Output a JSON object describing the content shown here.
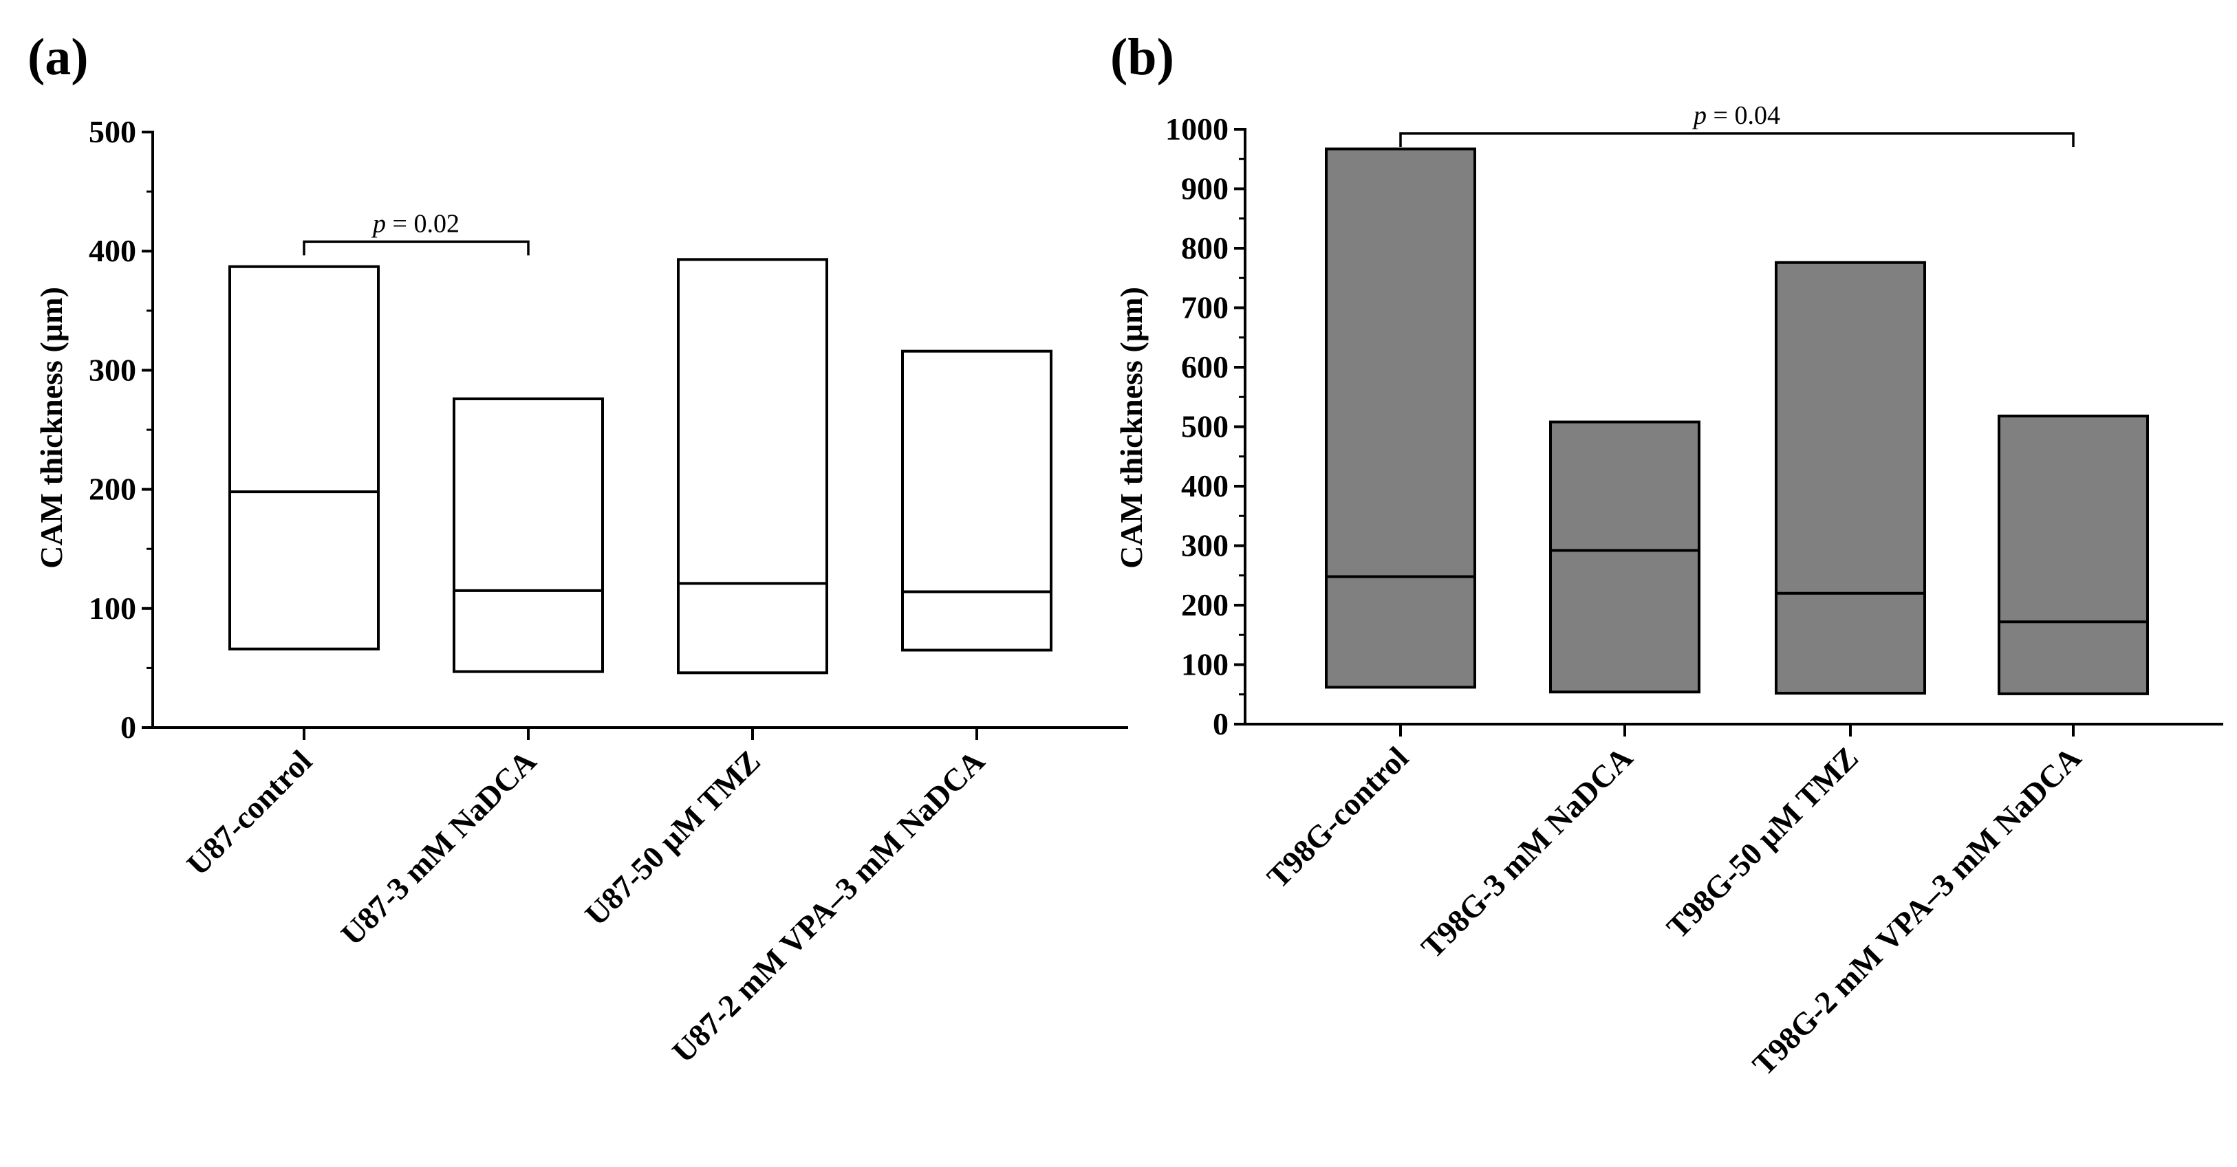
{
  "chart_data": [
    {
      "panel_label": "(a)",
      "type": "box",
      "ylabel": "CAM thickness (µm)",
      "ylim": [
        0,
        500
      ],
      "yticks": [
        0,
        100,
        200,
        300,
        400,
        500
      ],
      "fill_color": "#ffffff",
      "categories": [
        "U87-control",
        "U87-3 mM NaDCA",
        "U87-50 µM TMZ",
        "U87-2 mM VPA–3 mM NaDCA"
      ],
      "boxes": [
        {
          "min": 66,
          "median": 198,
          "max": 387
        },
        {
          "min": 47,
          "median": 115,
          "max": 276
        },
        {
          "min": 46,
          "median": 121,
          "max": 393
        },
        {
          "min": 65,
          "median": 114,
          "max": 316
        }
      ],
      "significance": {
        "from": 0,
        "to": 1,
        "y": 408,
        "p_label": "p",
        "p_value": "= 0.02"
      }
    },
    {
      "panel_label": "(b)",
      "type": "box",
      "ylabel": "CAM thickness (µm)",
      "ylim": [
        0,
        1000
      ],
      "yticks": [
        0,
        100,
        200,
        300,
        400,
        500,
        600,
        700,
        800,
        900,
        1000
      ],
      "fill_color": "#808080",
      "categories": [
        "T98G-control",
        "T98G-3 mM NaDCA",
        "T98G-50 µM TMZ",
        "T98G-2 mM VPA–3 mM NaDCA"
      ],
      "boxes": [
        {
          "min": 62,
          "median": 248,
          "max": 967
        },
        {
          "min": 54,
          "median": 292,
          "max": 508
        },
        {
          "min": 52,
          "median": 220,
          "max": 776
        },
        {
          "min": 51,
          "median": 172,
          "max": 518
        }
      ],
      "significance": {
        "from": 0,
        "to": 3,
        "y": 993,
        "p_label": "p",
        "p_value": "= 0.04"
      }
    }
  ]
}
